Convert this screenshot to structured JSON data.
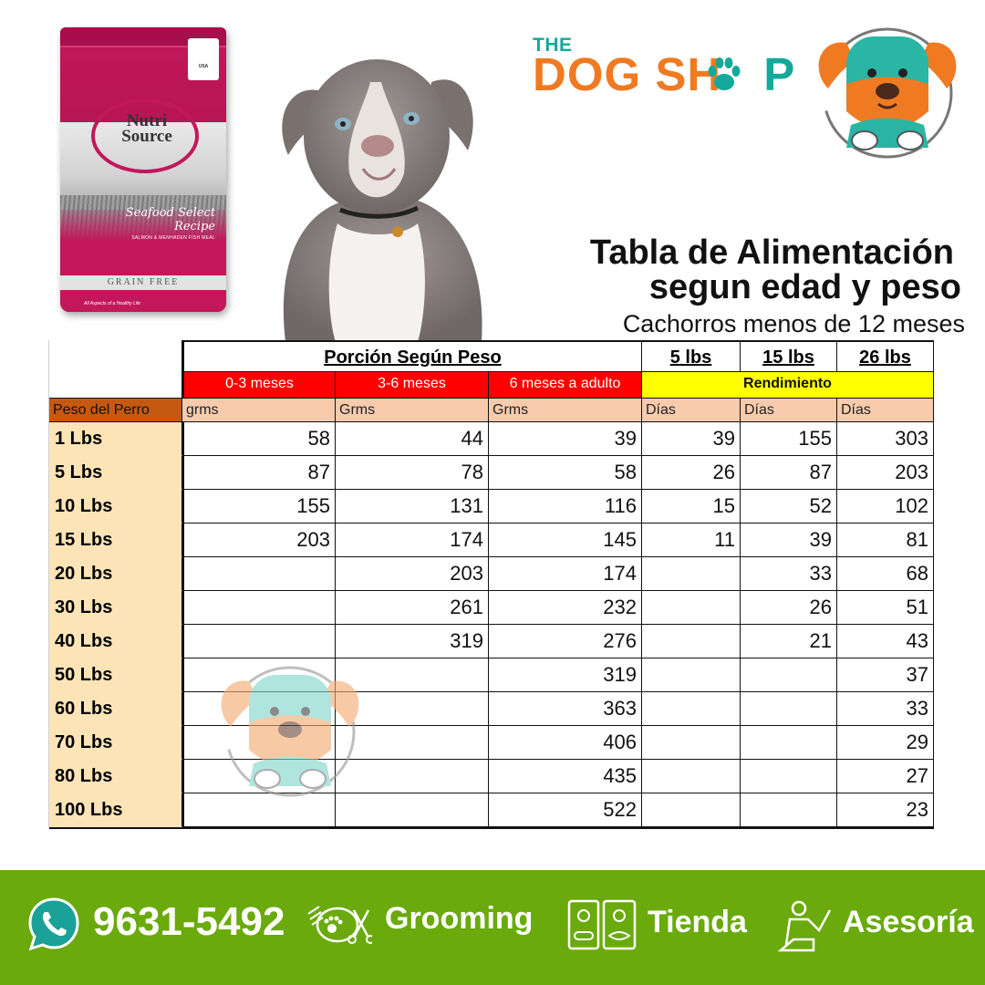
{
  "product": {
    "brand": "Nutri Source",
    "recipe": "Seafood Select Recipe",
    "recipe_sub": "SALMON & MENHADEN FISH MEAL",
    "grain": "GRAIN FREE",
    "badge": "USA",
    "foot": "All Aspects of a Healthy Life"
  },
  "brand": {
    "the": "THE",
    "dog": "DOG SH",
    "p": "P"
  },
  "heading": {
    "title_line1": "Tabla de Alimentación",
    "title_line2": "segun edad y peso",
    "subtitle": "Cachorros menos de 12 meses"
  },
  "table": {
    "group_header": "Porción Según Peso",
    "size_headers": [
      "5 lbs",
      "15 lbs",
      "26 lbs"
    ],
    "age_headers": [
      "0-3 meses",
      "3-6 meses",
      "6 meses a adulto"
    ],
    "yield_header": "Rendimiento",
    "units": [
      "Peso del Perro",
      "grms",
      "Grms",
      "Grms",
      "Días",
      "Días",
      "Días"
    ],
    "rows": [
      {
        "label": "1 Lbs",
        "cells": [
          "58",
          "44",
          "39",
          "39",
          "155",
          "303"
        ]
      },
      {
        "label": "5 Lbs",
        "cells": [
          "87",
          "78",
          "58",
          "26",
          "87",
          "203"
        ]
      },
      {
        "label": "10 Lbs",
        "cells": [
          "155",
          "131",
          "116",
          "15",
          "52",
          "102"
        ]
      },
      {
        "label": "15 Lbs",
        "cells": [
          "203",
          "174",
          "145",
          "11",
          "39",
          "81"
        ]
      },
      {
        "label": "20 Lbs",
        "cells": [
          "",
          "203",
          "174",
          "",
          "33",
          "68"
        ]
      },
      {
        "label": "30 Lbs",
        "cells": [
          "",
          "261",
          "232",
          "",
          "26",
          "51"
        ]
      },
      {
        "label": "40 Lbs",
        "cells": [
          "",
          "319",
          "276",
          "",
          "21",
          "43"
        ]
      },
      {
        "label": "50 Lbs",
        "cells": [
          "",
          "",
          "319",
          "",
          "",
          "37"
        ]
      },
      {
        "label": "60 Lbs",
        "cells": [
          "",
          "",
          "363",
          "",
          "",
          "33"
        ]
      },
      {
        "label": "70 Lbs",
        "cells": [
          "",
          "",
          "406",
          "",
          "",
          "29"
        ]
      },
      {
        "label": "80 Lbs",
        "cells": [
          "",
          "",
          "435",
          "",
          "",
          "27"
        ]
      },
      {
        "label": "100 Lbs",
        "cells": [
          "",
          "",
          "522",
          "",
          "",
          "23"
        ]
      }
    ]
  },
  "footer": {
    "phone": "9631-5492",
    "services": [
      {
        "icon": "grooming-icon",
        "label": "Grooming"
      },
      {
        "icon": "store-icon",
        "label": "Tienda"
      },
      {
        "icon": "advisor-icon",
        "label": "Asesoría"
      }
    ]
  },
  "colors": {
    "brand_orange": "#f07a22",
    "brand_teal": "#14a99a",
    "header_red": "#ff0000",
    "header_yellow": "#ffff00",
    "unit_salmon": "#f8cbad",
    "row_label_beige": "#fce4b6",
    "footer_green": "#6aaa0c"
  }
}
